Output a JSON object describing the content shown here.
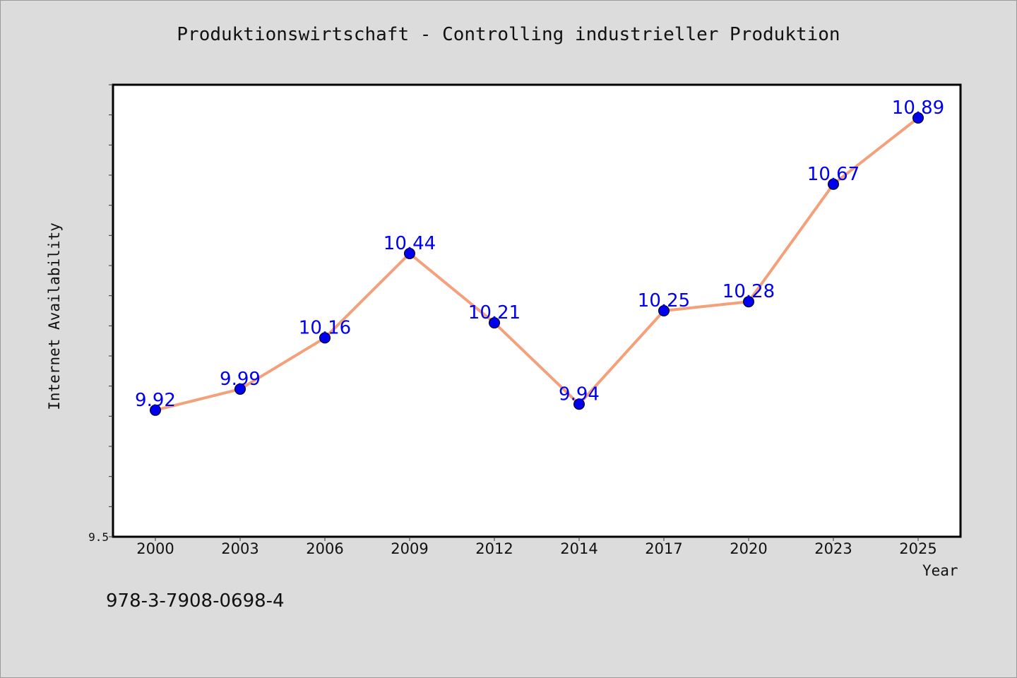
{
  "chart_data": {
    "type": "line",
    "title": "Produktionswirtschaft - Controlling industrieller Produktion",
    "xlabel": "Year",
    "ylabel": "Internet Availability",
    "categories": [
      "2000",
      "2003",
      "2006",
      "2009",
      "2012",
      "2014",
      "2017",
      "2020",
      "2023",
      "2025"
    ],
    "series": [
      {
        "values": [
          9.92,
          9.99,
          10.16,
          10.44,
          10.21,
          9.94,
          10.25,
          10.28,
          10.67,
          10.89
        ]
      }
    ],
    "ylim": [
      9.5,
      11.0
    ],
    "ytick_labels": [
      "9.5"
    ],
    "grid": false,
    "legend": "none",
    "colors": {
      "line": "#f4a07a",
      "marker": "#0000ee",
      "data_label": "#0000ee",
      "plot_background": "#ffffff",
      "figure_background": "#dcdcdc"
    }
  },
  "footnote": "978-3-7908-0698-4"
}
